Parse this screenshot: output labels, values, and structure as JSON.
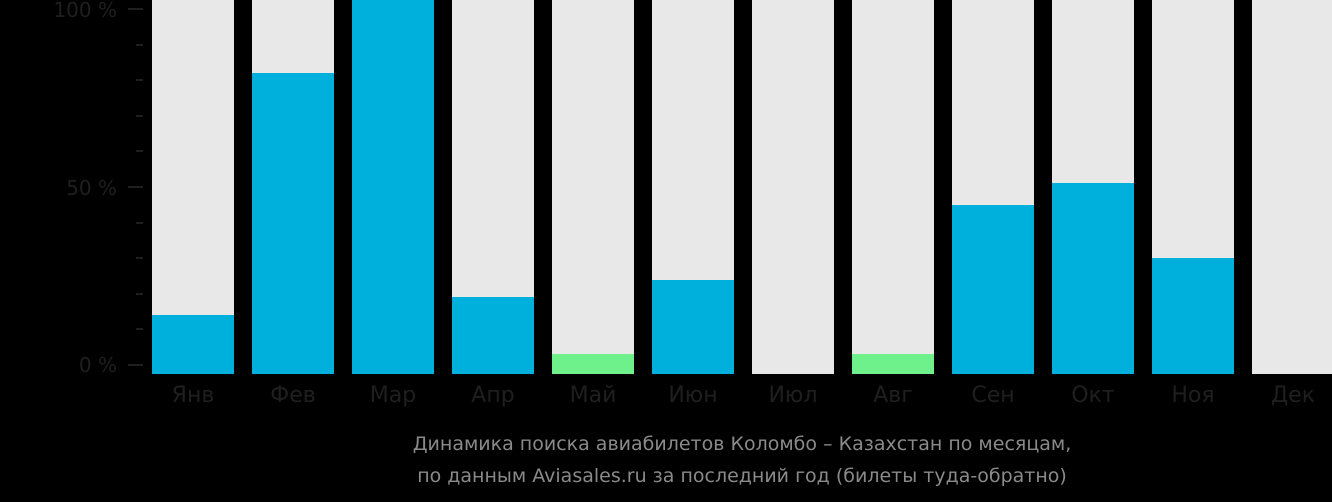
{
  "chart_data": {
    "type": "bar",
    "title": "Динамика поиска авиабилетов Коломбо – Казахстан по месяцам, по данным Aviasales.ru за последний год (билеты туда-обратно)",
    "xlabel": "",
    "ylabel": "",
    "ylim": [
      0,
      100
    ],
    "y_ticks": [
      "100 %",
      "50 %",
      "0 %"
    ],
    "categories": [
      "Янв",
      "Фев",
      "Мар",
      "Апр",
      "Май",
      "Июн",
      "Июл",
      "Авг",
      "Сен",
      "Окт",
      "Ноя",
      "Дек"
    ],
    "values": [
      14,
      82,
      100,
      19,
      3,
      24,
      0,
      3,
      45,
      51,
      30,
      0
    ],
    "bar_colors": [
      "#00b0dc",
      "#00b0dc",
      "#00b0dc",
      "#00b0dc",
      "#6ef08a",
      "#00b0dc",
      "#00b0dc",
      "#6ef08a",
      "#00b0dc",
      "#00b0dc",
      "#00b0dc",
      "#00b0dc"
    ],
    "background_bar_color": "#e8e8e8",
    "grid": false,
    "legend": null
  },
  "caption": {
    "line1": "Динамика поиска авиабилетов Коломбо – Казахстан по месяцам,",
    "line2": "по данным Aviasales.ru за последний год (билеты туда-обратно)"
  }
}
